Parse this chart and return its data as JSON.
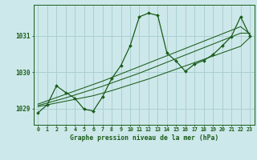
{
  "title": "Graphe pression niveau de la mer (hPa)",
  "background_color": "#cde8ea",
  "grid_color": "#aacfd2",
  "line_color": "#1a5c1a",
  "x_labels": [
    "0",
    "1",
    "2",
    "3",
    "4",
    "5",
    "6",
    "7",
    "8",
    "9",
    "10",
    "11",
    "12",
    "13",
    "14",
    "15",
    "16",
    "17",
    "18",
    "19",
    "20",
    "21",
    "22",
    "23"
  ],
  "y_ticks": [
    1029,
    1030,
    1031
  ],
  "ylim": [
    1028.55,
    1031.85
  ],
  "xlim": [
    -0.5,
    23.5
  ],
  "series": {
    "main": [
      1028.88,
      1029.1,
      1029.62,
      1029.44,
      1029.28,
      1028.98,
      1028.93,
      1029.32,
      1029.82,
      1030.18,
      1030.72,
      1031.52,
      1031.62,
      1031.56,
      1030.52,
      1030.3,
      1030.02,
      1030.22,
      1030.32,
      1030.48,
      1030.72,
      1030.98,
      1031.52,
      1031.0
    ],
    "trend1": [
      1029.05,
      1029.1,
      1029.15,
      1029.2,
      1029.25,
      1029.3,
      1029.35,
      1029.42,
      1029.49,
      1029.57,
      1029.65,
      1029.73,
      1029.81,
      1029.9,
      1029.99,
      1030.08,
      1030.17,
      1030.26,
      1030.35,
      1030.44,
      1030.53,
      1030.62,
      1030.71,
      1030.95
    ],
    "trend2": [
      1029.08,
      1029.15,
      1029.22,
      1029.29,
      1029.37,
      1029.45,
      1029.53,
      1029.61,
      1029.7,
      1029.79,
      1029.88,
      1029.97,
      1030.07,
      1030.17,
      1030.27,
      1030.37,
      1030.47,
      1030.57,
      1030.67,
      1030.77,
      1030.87,
      1030.97,
      1031.07,
      1031.07
    ],
    "trend3": [
      1029.12,
      1029.21,
      1029.3,
      1029.39,
      1029.48,
      1029.57,
      1029.66,
      1029.75,
      1029.85,
      1029.95,
      1030.05,
      1030.15,
      1030.25,
      1030.35,
      1030.45,
      1030.55,
      1030.65,
      1030.75,
      1030.85,
      1030.95,
      1031.05,
      1031.15,
      1031.25,
      1031.05
    ]
  }
}
